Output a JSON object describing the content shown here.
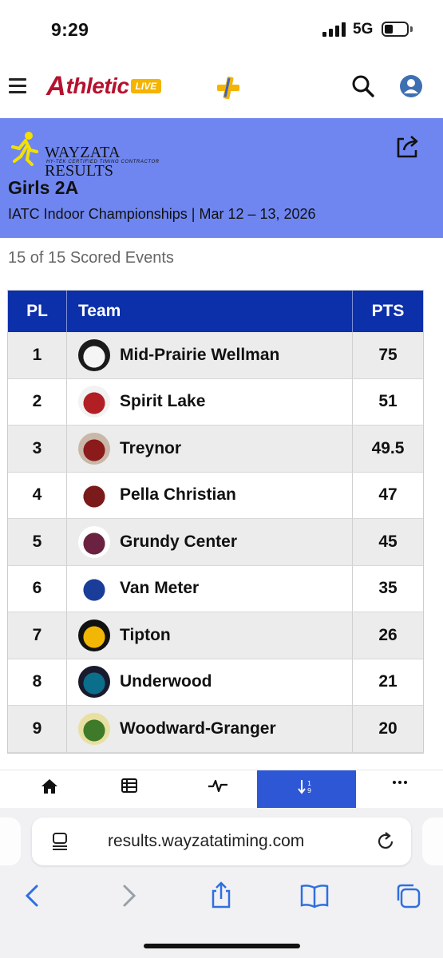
{
  "status": {
    "time": "9:29",
    "network": "5G"
  },
  "app": {
    "logo_mark": "A",
    "logo_text": "thletic",
    "logo_live": "LIVE"
  },
  "banner": {
    "brand_name": "WAYZATA RESULTS",
    "brand_tag": "HY-TEK CERTIFIED TIMING CONTRACTOR",
    "division": "Girls 2A",
    "meet": "IATC Indoor Championships | Mar 12 – 13, 2026"
  },
  "scored_events": "15 of 15 Scored Events",
  "table": {
    "headers": {
      "place": "PL",
      "team": "Team",
      "points": "PTS"
    },
    "rows": [
      {
        "place": "1",
        "team": "Mid-Prairie Wellman",
        "points": "75",
        "logo_colors": [
          "#f5f5f5",
          "#1a1a1a"
        ]
      },
      {
        "place": "2",
        "team": "Spirit Lake",
        "points": "51",
        "logo_colors": [
          "#b11f24",
          "#f2f2f2"
        ]
      },
      {
        "place": "3",
        "team": "Treynor",
        "points": "49.5",
        "logo_colors": [
          "#8b1a1a",
          "#c9b8a8"
        ]
      },
      {
        "place": "4",
        "team": "Pella Christian",
        "points": "47",
        "logo_colors": [
          "#7a1a1a",
          "#ffffff"
        ]
      },
      {
        "place": "5",
        "team": "Grundy Center",
        "points": "45",
        "logo_colors": [
          "#6b2140",
          "#ffffff"
        ]
      },
      {
        "place": "6",
        "team": "Van Meter",
        "points": "35",
        "logo_colors": [
          "#1b3d9a",
          "#ffffff"
        ]
      },
      {
        "place": "7",
        "team": "Tipton",
        "points": "26",
        "logo_colors": [
          "#f2b705",
          "#111111"
        ]
      },
      {
        "place": "8",
        "team": "Underwood",
        "points": "21",
        "logo_colors": [
          "#0b6e8a",
          "#1a1a2e"
        ]
      },
      {
        "place": "9",
        "team": "Woodward-Granger",
        "points": "20",
        "logo_colors": [
          "#3e7a2a",
          "#e8e0a0"
        ]
      }
    ]
  },
  "tabs": [
    {
      "name": "home",
      "icon": "home-icon"
    },
    {
      "name": "events",
      "icon": "list-icon"
    },
    {
      "name": "live",
      "icon": "pulse-icon"
    },
    {
      "name": "scores",
      "icon": "sort-icon",
      "active": true
    },
    {
      "name": "more",
      "icon": "more-icon"
    }
  ],
  "browser": {
    "url": "results.wayzatatiming.com"
  },
  "colors": {
    "header_blue": "#0c2faa",
    "banner_blue": "#6f86f0",
    "brand_red": "#b5122f",
    "active_tab": "#2e57d6"
  }
}
